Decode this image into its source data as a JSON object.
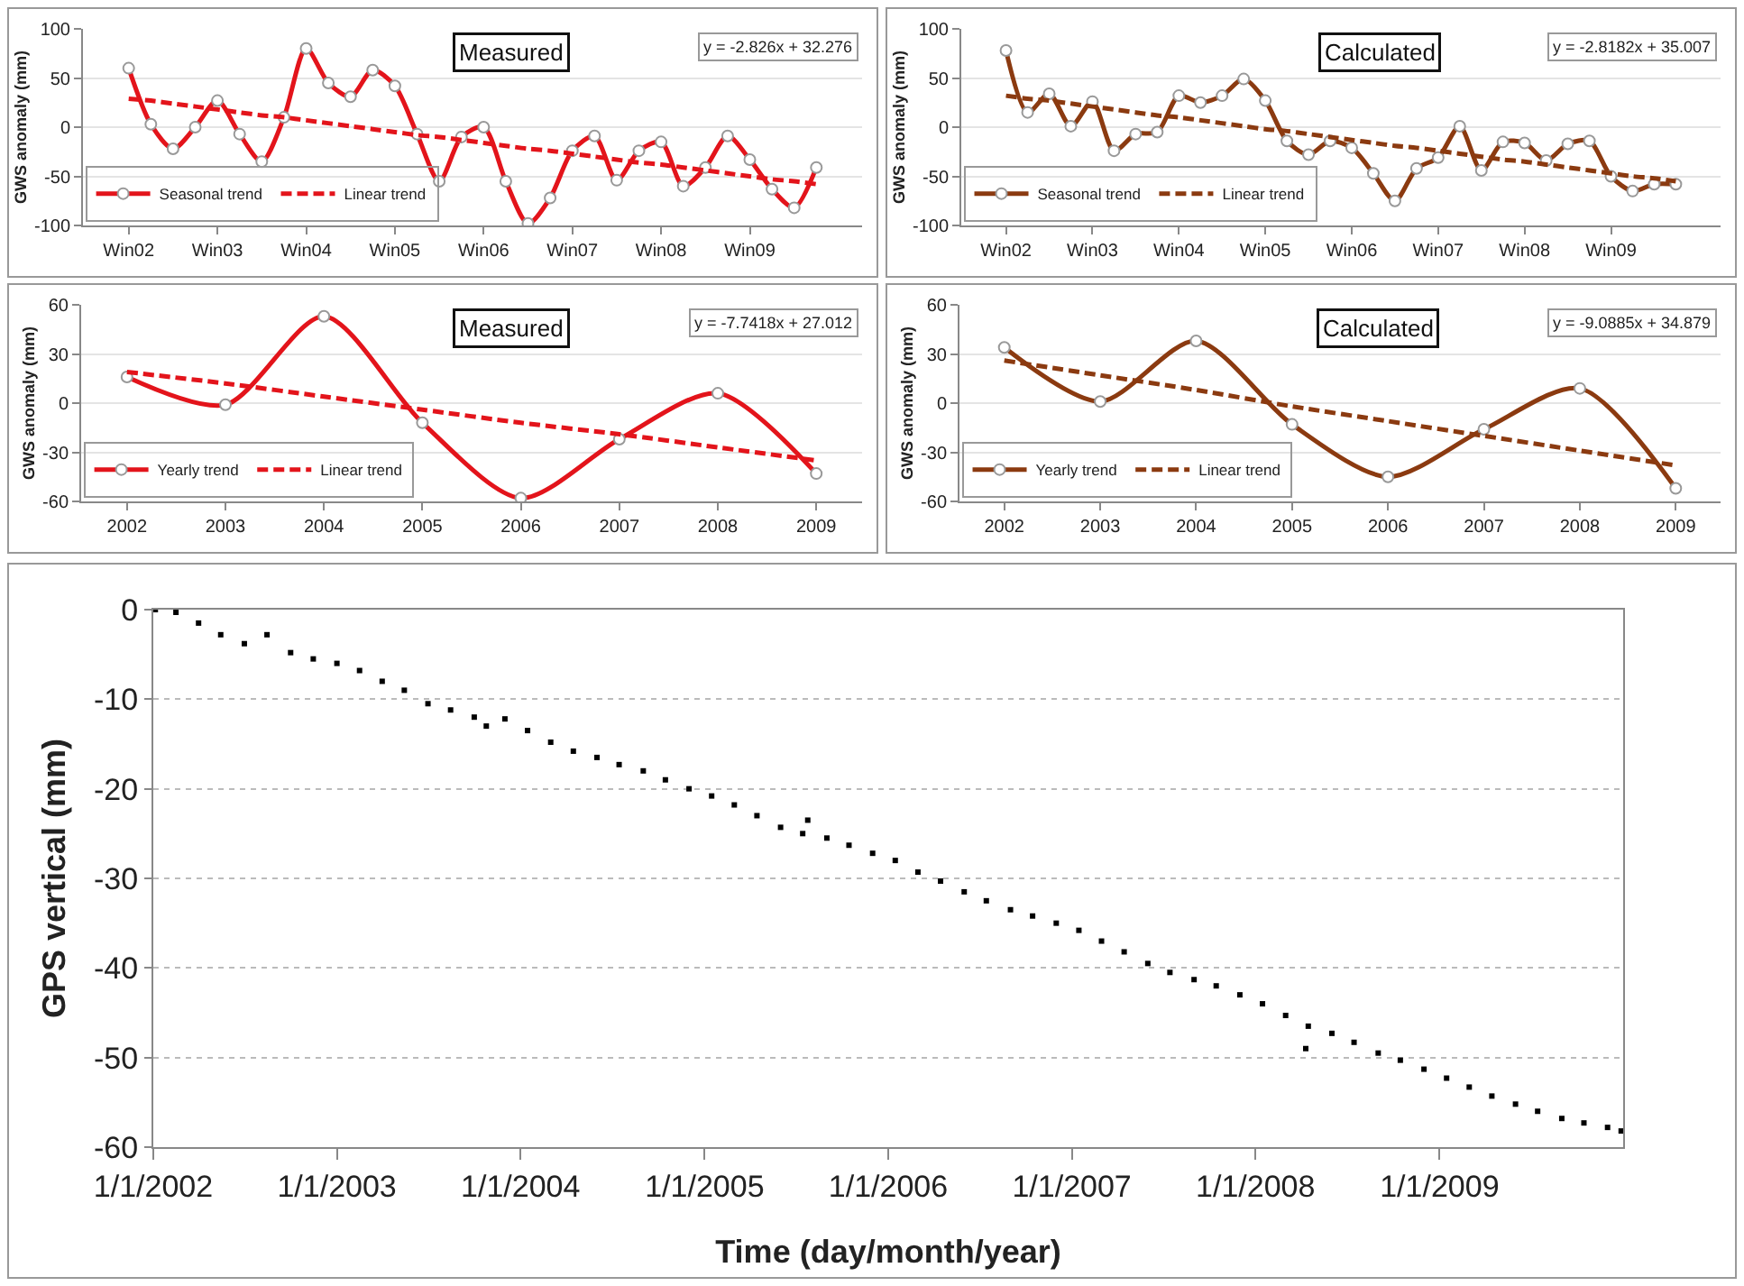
{
  "chart_data": [
    {
      "type": "line",
      "ylabel": "GWS anomaly (mm)",
      "annotations": [
        "Measured",
        "y = -2.826x + 32.276"
      ],
      "categories": [
        "Win02",
        null,
        null,
        null,
        "Win03",
        null,
        null,
        null,
        "Win04",
        null,
        null,
        null,
        "Win05",
        null,
        null,
        null,
        "Win06",
        null,
        null,
        null,
        "Win07",
        null,
        null,
        null,
        "Win08",
        null,
        null,
        null,
        "Win09",
        null,
        null,
        null
      ],
      "series": [
        {
          "name": "Seasonal trend",
          "color": "#e3141b",
          "marker": "circle",
          "line_style": "solid",
          "values": [
            60,
            3,
            -22,
            0,
            27,
            -7,
            -35,
            10,
            80,
            45,
            31,
            58,
            42,
            -7,
            -55,
            -10,
            0,
            -55,
            -98,
            -72,
            -24,
            -9,
            -54,
            -24,
            -15,
            -60,
            -41,
            -9,
            -33,
            -63,
            -82,
            -41
          ]
        },
        {
          "name": "Linear trend",
          "color": "#e3141b",
          "marker": "none",
          "line_style": "dashed",
          "values": [
            29,
            27,
            24,
            21,
            18,
            15,
            12,
            10,
            7,
            4,
            1,
            -2,
            -5,
            -8,
            -10,
            -13,
            -16,
            -19,
            -22,
            -24,
            -27,
            -30,
            -33,
            -36,
            -38,
            -41,
            -44,
            -47,
            -50,
            -53,
            -55,
            -58
          ]
        }
      ],
      "ylim": [
        -100,
        100
      ],
      "yticks": [
        -100,
        -50,
        0,
        50,
        100
      ],
      "grid": "y",
      "legend": "bottom left"
    },
    {
      "type": "line",
      "ylabel": "GWS anomaly (mm)",
      "annotations": [
        "Calculated",
        "y = -2.8182x + 35.007"
      ],
      "categories": [
        "Win02",
        null,
        null,
        null,
        "Win03",
        null,
        null,
        null,
        "Win04",
        null,
        null,
        null,
        "Win05",
        null,
        null,
        null,
        "Win06",
        null,
        null,
        null,
        "Win07",
        null,
        null,
        null,
        "Win08",
        null,
        null,
        null,
        "Win09",
        null,
        null,
        null
      ],
      "series": [
        {
          "name": "Seasonal trend",
          "color": "#8b3a10",
          "marker": "circle",
          "line_style": "solid",
          "values": [
            78,
            15,
            34,
            1,
            26,
            -24,
            -7,
            -5,
            32,
            25,
            32,
            49,
            27,
            -14,
            -28,
            -14,
            -21,
            -47,
            -75,
            -42,
            -31,
            1,
            -44,
            -15,
            -16,
            -34,
            -17,
            -14,
            -50,
            -65,
            -58,
            -58
          ]
        },
        {
          "name": "Linear trend",
          "color": "#8b3a10",
          "marker": "none",
          "line_style": "dashed",
          "values": [
            32,
            29,
            27,
            24,
            21,
            18,
            15,
            12,
            10,
            7,
            4,
            1,
            -2,
            -4,
            -7,
            -10,
            -13,
            -16,
            -19,
            -21,
            -24,
            -27,
            -30,
            -33,
            -35,
            -38,
            -41,
            -44,
            -47,
            -50,
            -52,
            -55
          ]
        }
      ],
      "ylim": [
        -100,
        100
      ],
      "yticks": [
        -100,
        -50,
        0,
        50,
        100
      ],
      "grid": "y",
      "legend": "bottom left"
    },
    {
      "type": "line",
      "ylabel": "GWS anomaly (mm)",
      "annotations": [
        "Measured",
        "y = -7.7418x + 27.012"
      ],
      "categories": [
        "2002",
        "2003",
        "2004",
        "2005",
        "2006",
        "2007",
        "2008",
        "2009"
      ],
      "series": [
        {
          "name": "Yearly trend",
          "color": "#e3141b",
          "marker": "circle",
          "line_style": "solid",
          "values": [
            16,
            -1,
            53,
            -12,
            -58,
            -22,
            6,
            -43
          ]
        },
        {
          "name": "Linear trend",
          "color": "#e3141b",
          "marker": "none",
          "line_style": "dashed",
          "values": [
            19,
            12,
            4,
            -4,
            -12,
            -19,
            -27,
            -35
          ]
        }
      ],
      "ylim": [
        -60,
        60
      ],
      "yticks": [
        -60,
        -30,
        0,
        30,
        60
      ],
      "grid": "y",
      "legend": "bottom left"
    },
    {
      "type": "line",
      "ylabel": "GWS anomaly (mm)",
      "annotations": [
        "Calculated",
        "y = -9.0885x + 34.879"
      ],
      "categories": [
        "2002",
        "2003",
        "2004",
        "2005",
        "2006",
        "2007",
        "2008",
        "2009"
      ],
      "series": [
        {
          "name": "Yearly trend",
          "color": "#8b3a10",
          "marker": "circle",
          "line_style": "solid",
          "values": [
            34,
            1,
            38,
            -13,
            -45,
            -16,
            9,
            -52
          ]
        },
        {
          "name": "Linear trend",
          "color": "#8b3a10",
          "marker": "none",
          "line_style": "dashed",
          "values": [
            26,
            17,
            8,
            -2,
            -11,
            -20,
            -29,
            -38
          ]
        }
      ],
      "ylim": [
        -60,
        60
      ],
      "yticks": [
        -60,
        -30,
        0,
        30,
        60
      ],
      "grid": "y",
      "legend": "bottom left"
    },
    {
      "type": "scatter",
      "xlabel": "Time (day/month/year)",
      "ylabel": "GPS vertical (mm)",
      "marker": "square",
      "series": [
        {
          "color": "#000000",
          "x": [
            "2002-01-05",
            "2002-02-15",
            "2002-04-01",
            "2002-05-15",
            "2002-07-01",
            "2002-08-15",
            "2002-10-01",
            "2002-11-15",
            "2003-01-01",
            "2003-02-15",
            "2003-04-01",
            "2003-05-15",
            "2003-07-01",
            "2003-08-15",
            "2003-10-01",
            "2003-10-25",
            "2003-12-01",
            "2004-01-15",
            "2004-03-01",
            "2004-04-15",
            "2004-06-01",
            "2004-07-15",
            "2004-09-01",
            "2004-10-15",
            "2004-12-01",
            "2005-01-15",
            "2005-03-01",
            "2005-04-15",
            "2005-06-01",
            "2005-07-15",
            "2005-07-25",
            "2005-09-01",
            "2005-10-15",
            "2005-12-01",
            "2006-01-15",
            "2006-03-01",
            "2006-04-15",
            "2006-06-01",
            "2006-07-15",
            "2006-09-01",
            "2006-10-15",
            "2006-12-01",
            "2007-01-15",
            "2007-03-01",
            "2007-04-15",
            "2007-06-01",
            "2007-07-15",
            "2007-09-01",
            "2007-10-15",
            "2007-12-01",
            "2008-01-15",
            "2008-03-01",
            "2008-04-10",
            "2008-04-15",
            "2008-06-01",
            "2008-07-15",
            "2008-09-01",
            "2008-10-15",
            "2008-12-01",
            "2009-01-15",
            "2009-03-01",
            "2009-04-15",
            "2009-06-01",
            "2009-07-15",
            "2009-09-01",
            "2009-10-15",
            "2009-12-01",
            "2009-12-28"
          ],
          "values": [
            0,
            -0.3,
            -1.5,
            -2.8,
            -3.8,
            -2.8,
            -4.8,
            -5.5,
            -6,
            -6.8,
            -8,
            -9,
            -10.5,
            -11.2,
            -12,
            -13,
            -12.2,
            -13.5,
            -14.8,
            -15.8,
            -16.5,
            -17.3,
            -18,
            -19,
            -20,
            -20.8,
            -21.8,
            -23,
            -24.3,
            -25,
            -23.5,
            -25.5,
            -26.3,
            -27.2,
            -28,
            -29.3,
            -30.3,
            -31.5,
            -32.5,
            -33.5,
            -34.2,
            -35,
            -35.8,
            -37,
            -38.2,
            -39.5,
            -40.5,
            -41.3,
            -42,
            -43,
            -44,
            -45.3,
            -49,
            -46.5,
            -47.3,
            -48.3,
            -49.5,
            -50.3,
            -51.3,
            -52.3,
            -53.3,
            -54.3,
            -55.2,
            -56,
            -56.8,
            -57.3,
            -57.8,
            -58.2
          ]
        }
      ],
      "xlim": [
        "2002-01-01",
        "2010-01-01"
      ],
      "xticks": [
        {
          "value": "2002-01-01",
          "label": "1/1/2002"
        },
        {
          "value": "2003-01-01",
          "label": "1/1/2003"
        },
        {
          "value": "2004-01-01",
          "label": "1/1/2004"
        },
        {
          "value": "2005-01-01",
          "label": "1/1/2005"
        },
        {
          "value": "2006-01-01",
          "label": "1/1/2006"
        },
        {
          "value": "2007-01-01",
          "label": "1/1/2007"
        },
        {
          "value": "2008-01-01",
          "label": "1/1/2008"
        },
        {
          "value": "2009-01-01",
          "label": "1/1/2009"
        }
      ],
      "ylim": [
        -60,
        0
      ],
      "yticks": [
        -60,
        -50,
        -40,
        -30,
        -20,
        -10,
        0
      ],
      "grid": "y"
    }
  ]
}
